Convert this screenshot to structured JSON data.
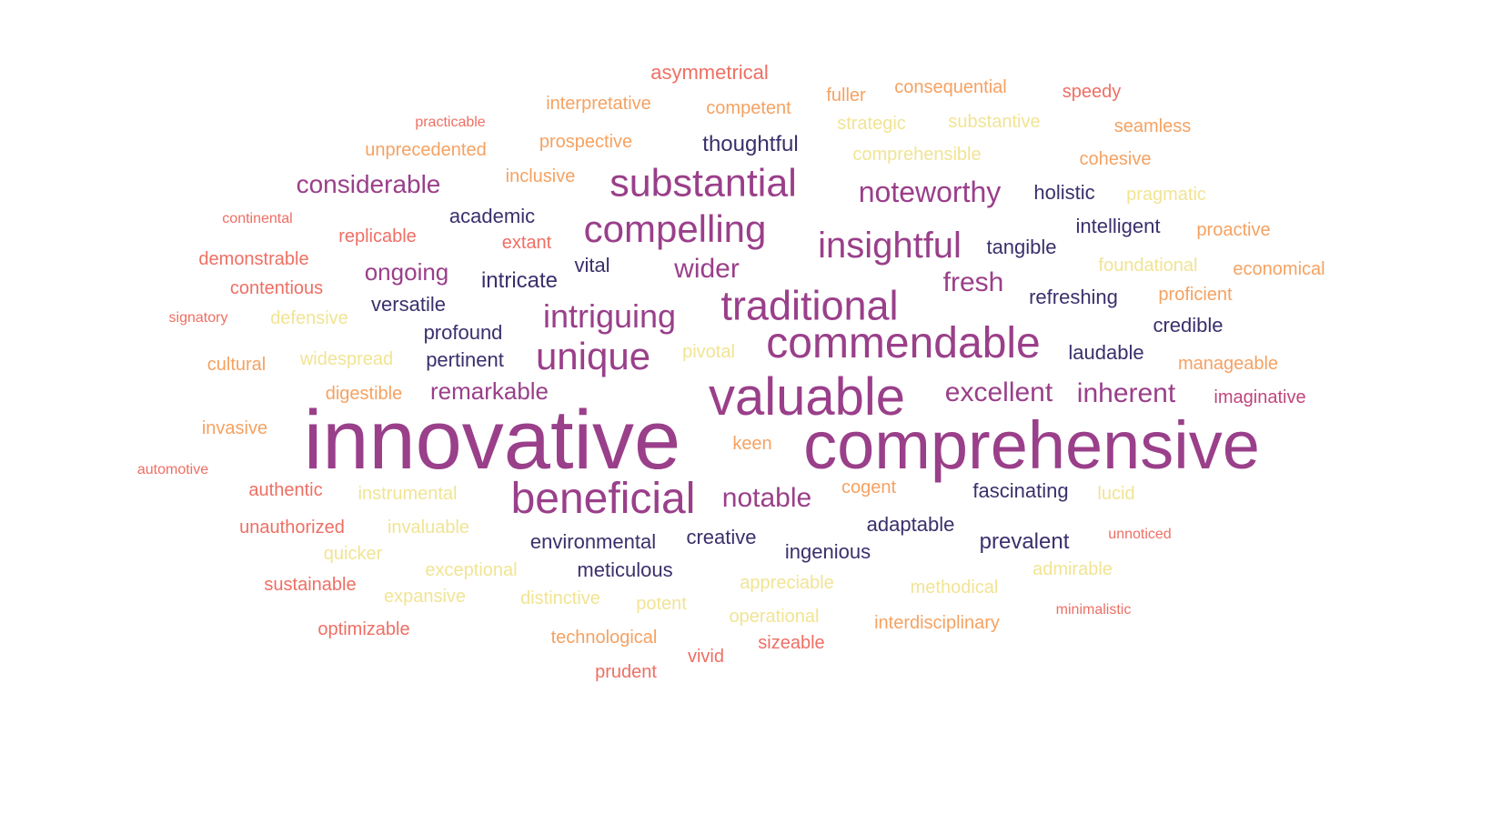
{
  "palette": {
    "navy": "#3b2f6b",
    "purple": "#9a3f8a",
    "pink": "#c0467e",
    "coral": "#ee6f64",
    "orange": "#f5a262",
    "yellow": "#f1e494"
  },
  "words": [
    {
      "text": "innovative",
      "tone": "purple"
    },
    {
      "text": "comprehensive",
      "tone": "purple"
    },
    {
      "text": "valuable",
      "tone": "purple"
    },
    {
      "text": "commendable",
      "tone": "purple"
    },
    {
      "text": "beneficial",
      "tone": "purple"
    },
    {
      "text": "traditional",
      "tone": "purple"
    },
    {
      "text": "substantial",
      "tone": "purple"
    },
    {
      "text": "compelling",
      "tone": "purple"
    },
    {
      "text": "insightful",
      "tone": "purple"
    },
    {
      "text": "unique",
      "tone": "purple"
    },
    {
      "text": "intriguing",
      "tone": "purple"
    },
    {
      "text": "noteworthy",
      "tone": "purple"
    },
    {
      "text": "excellent",
      "tone": "purple"
    },
    {
      "text": "inherent",
      "tone": "purple"
    },
    {
      "text": "notable",
      "tone": "purple"
    },
    {
      "text": "fresh",
      "tone": "purple"
    },
    {
      "text": "wider",
      "tone": "purple"
    },
    {
      "text": "considerable",
      "tone": "purple"
    },
    {
      "text": "remarkable",
      "tone": "purple"
    },
    {
      "text": "ongoing",
      "tone": "purple"
    },
    {
      "text": "thoughtful",
      "tone": "navy"
    },
    {
      "text": "holistic",
      "tone": "navy"
    },
    {
      "text": "academic",
      "tone": "navy"
    },
    {
      "text": "intelligent",
      "tone": "navy"
    },
    {
      "text": "tangible",
      "tone": "navy"
    },
    {
      "text": "vital",
      "tone": "navy"
    },
    {
      "text": "intricate",
      "tone": "navy"
    },
    {
      "text": "refreshing",
      "tone": "navy"
    },
    {
      "text": "versatile",
      "tone": "navy"
    },
    {
      "text": "credible",
      "tone": "navy"
    },
    {
      "text": "profound",
      "tone": "navy"
    },
    {
      "text": "pertinent",
      "tone": "navy"
    },
    {
      "text": "laudable",
      "tone": "navy"
    },
    {
      "text": "fascinating",
      "tone": "navy"
    },
    {
      "text": "adaptable",
      "tone": "navy"
    },
    {
      "text": "prevalent",
      "tone": "navy"
    },
    {
      "text": "environmental",
      "tone": "navy"
    },
    {
      "text": "creative",
      "tone": "navy"
    },
    {
      "text": "ingenious",
      "tone": "navy"
    },
    {
      "text": "meticulous",
      "tone": "navy"
    },
    {
      "text": "imaginative",
      "tone": "pink"
    },
    {
      "text": "unnoticed",
      "tone": "coral"
    },
    {
      "text": "minimalistic",
      "tone": "coral"
    },
    {
      "text": "asymmetrical",
      "tone": "coral"
    },
    {
      "text": "speedy",
      "tone": "coral"
    },
    {
      "text": "practicable",
      "tone": "coral"
    },
    {
      "text": "continental",
      "tone": "coral"
    },
    {
      "text": "demonstrable",
      "tone": "coral"
    },
    {
      "text": "contentious",
      "tone": "coral"
    },
    {
      "text": "signatory",
      "tone": "coral"
    },
    {
      "text": "automotive",
      "tone": "coral"
    },
    {
      "text": "authentic",
      "tone": "coral"
    },
    {
      "text": "unauthorized",
      "tone": "coral"
    },
    {
      "text": "sustainable",
      "tone": "coral"
    },
    {
      "text": "optimizable",
      "tone": "coral"
    },
    {
      "text": "replicable",
      "tone": "coral"
    },
    {
      "text": "extant",
      "tone": "coral"
    },
    {
      "text": "prudent",
      "tone": "coral"
    },
    {
      "text": "vivid",
      "tone": "coral"
    },
    {
      "text": "sizeable",
      "tone": "coral"
    },
    {
      "text": "interpretative",
      "tone": "orange"
    },
    {
      "text": "competent",
      "tone": "orange"
    },
    {
      "text": "fuller",
      "tone": "orange"
    },
    {
      "text": "consequential",
      "tone": "orange"
    },
    {
      "text": "seamless",
      "tone": "orange"
    },
    {
      "text": "cohesive",
      "tone": "orange"
    },
    {
      "text": "unprecedented",
      "tone": "orange"
    },
    {
      "text": "prospective",
      "tone": "orange"
    },
    {
      "text": "inclusive",
      "tone": "orange"
    },
    {
      "text": "proactive",
      "tone": "orange"
    },
    {
      "text": "economical",
      "tone": "orange"
    },
    {
      "text": "proficient",
      "tone": "orange"
    },
    {
      "text": "manageable",
      "tone": "orange"
    },
    {
      "text": "cultural",
      "tone": "orange"
    },
    {
      "text": "digestible",
      "tone": "orange"
    },
    {
      "text": "invasive",
      "tone": "orange"
    },
    {
      "text": "keen",
      "tone": "orange"
    },
    {
      "text": "cogent",
      "tone": "orange"
    },
    {
      "text": "interdisciplinary",
      "tone": "orange"
    },
    {
      "text": "technological",
      "tone": "orange"
    },
    {
      "text": "strategic",
      "tone": "yellow"
    },
    {
      "text": "substantive",
      "tone": "yellow"
    },
    {
      "text": "comprehensible",
      "tone": "yellow"
    },
    {
      "text": "pragmatic",
      "tone": "yellow"
    },
    {
      "text": "foundational",
      "tone": "yellow"
    },
    {
      "text": "defensive",
      "tone": "yellow"
    },
    {
      "text": "widespread",
      "tone": "yellow"
    },
    {
      "text": "pivotal",
      "tone": "yellow"
    },
    {
      "text": "instrumental",
      "tone": "yellow"
    },
    {
      "text": "lucid",
      "tone": "yellow"
    },
    {
      "text": "invaluable",
      "tone": "yellow"
    },
    {
      "text": "quicker",
      "tone": "yellow"
    },
    {
      "text": "exceptional",
      "tone": "yellow"
    },
    {
      "text": "expansive",
      "tone": "yellow"
    },
    {
      "text": "distinctive",
      "tone": "yellow"
    },
    {
      "text": "potent",
      "tone": "yellow"
    },
    {
      "text": "appreciable",
      "tone": "yellow"
    },
    {
      "text": "methodical",
      "tone": "yellow"
    },
    {
      "text": "admirable",
      "tone": "yellow"
    },
    {
      "text": "operational",
      "tone": "yellow"
    }
  ]
}
